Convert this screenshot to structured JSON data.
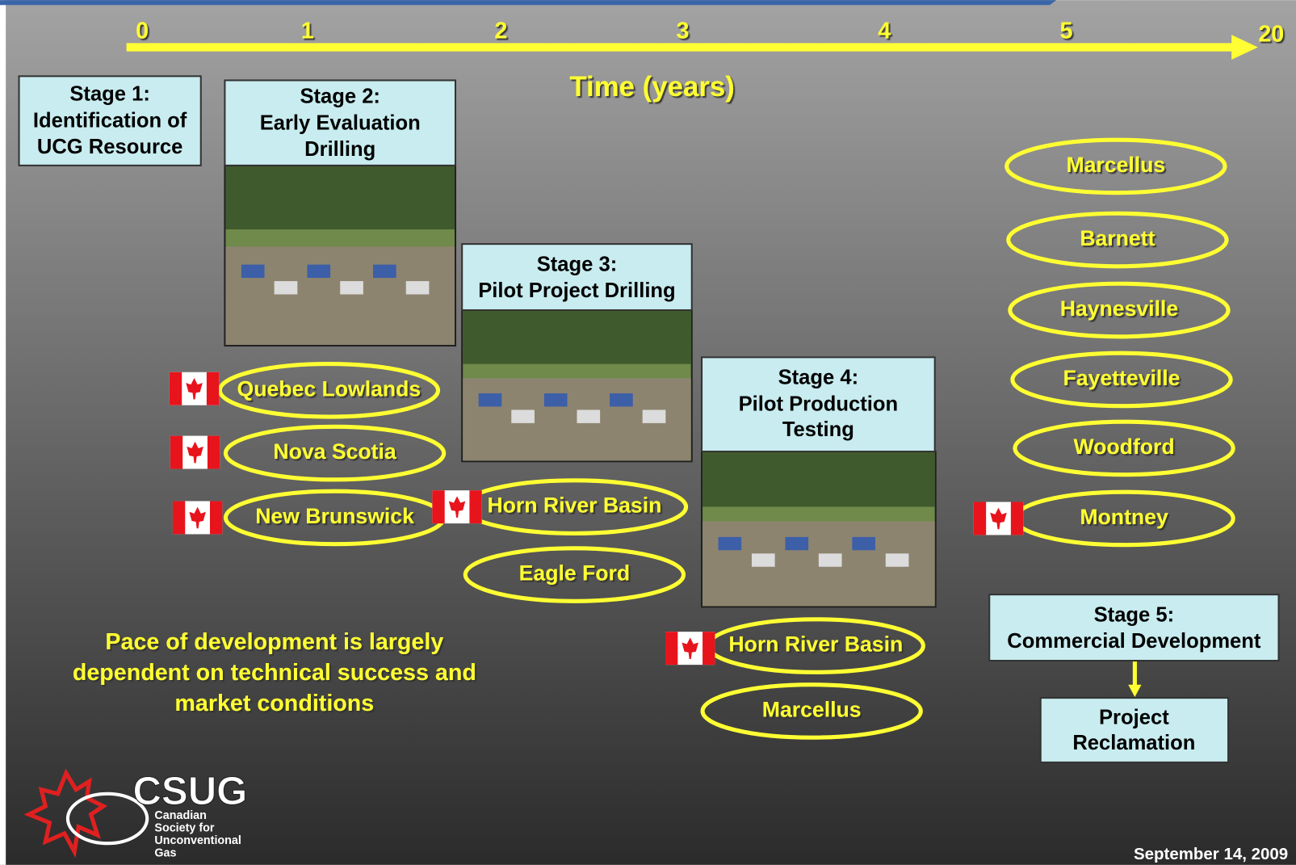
{
  "header": {
    "axis_ticks": [
      "0",
      "1",
      "2",
      "3",
      "4",
      "5",
      "20"
    ],
    "axis_title": "Time (years)"
  },
  "stages": [
    {
      "lines": [
        "Stage 1:",
        "Identification of",
        "UCG Resource"
      ]
    },
    {
      "lines": [
        "Stage 2:",
        "Early Evaluation",
        "Drilling"
      ]
    },
    {
      "lines": [
        "Stage 3:",
        "Pilot Project Drilling"
      ]
    },
    {
      "lines": [
        "Stage 4:",
        "Pilot Production",
        "Testing"
      ]
    },
    {
      "lines": [
        "Stage 5:",
        "Commercial Development"
      ]
    }
  ],
  "reclamation": {
    "lines": [
      "Project",
      "Reclamation"
    ]
  },
  "plays": [
    {
      "label": "Quebec Lowlands"
    },
    {
      "label": "Nova Scotia"
    },
    {
      "label": "New Brunswick"
    },
    {
      "label": "Horn River Basin"
    },
    {
      "label": "Eagle Ford"
    },
    {
      "label": "Horn River Basin"
    },
    {
      "label": "Marcellus"
    },
    {
      "label": "Marcellus"
    },
    {
      "label": "Barnett"
    },
    {
      "label": "Haynesville"
    },
    {
      "label": "Fayetteville"
    },
    {
      "label": "Woodford"
    },
    {
      "label": "Montney"
    }
  ],
  "note": {
    "lines": [
      "Pace of development is largely",
      "dependent on technical success and",
      "market conditions"
    ]
  },
  "logo": {
    "acronym": "CSUG",
    "lines": [
      "Canadian",
      "Society for",
      "Unconventional",
      "Gas"
    ]
  },
  "footer": {
    "date": "September 14, 2009"
  }
}
